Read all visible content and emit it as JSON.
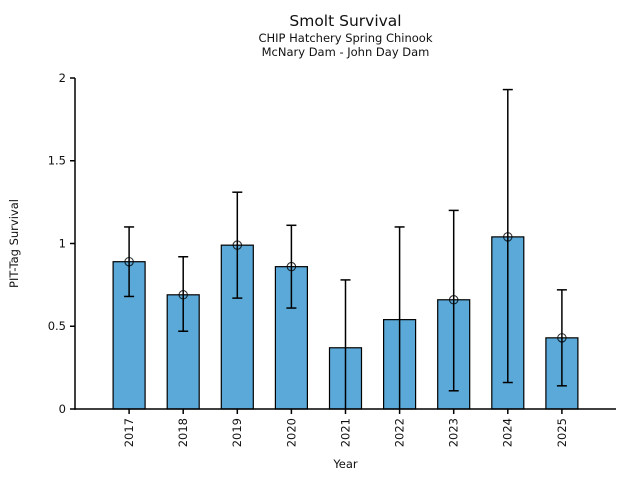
{
  "figure": {
    "title": "Smolt Survival",
    "subtitle_line1": "CHIP Hatchery Spring Chinook",
    "subtitle_line2": "McNary Dam - John Day Dam"
  },
  "chart_data": {
    "type": "bar",
    "title": "Smolt Survival",
    "subtitle": [
      "CHIP Hatchery Spring Chinook",
      "McNary Dam - John Day Dam"
    ],
    "xlabel": "Year",
    "ylabel": "PIT-Tag Survival",
    "categories": [
      "2017",
      "2018",
      "2019",
      "2020",
      "2021",
      "2022",
      "2023",
      "2024",
      "2025"
    ],
    "values": [
      0.89,
      0.69,
      0.99,
      0.86,
      0.37,
      0.54,
      0.66,
      1.04,
      0.43
    ],
    "error_low": [
      0.68,
      0.47,
      0.67,
      0.61,
      0.0,
      0.0,
      0.11,
      0.16,
      0.14
    ],
    "error_high": [
      1.1,
      0.92,
      1.31,
      1.11,
      0.78,
      1.1,
      1.2,
      1.93,
      0.72
    ],
    "point_markers": [
      true,
      true,
      true,
      true,
      false,
      false,
      true,
      true,
      true
    ],
    "ylim": [
      0,
      2
    ],
    "yticks": [
      0,
      0.5,
      1,
      1.5,
      2
    ],
    "ytick_labels": [
      "0",
      "0.5",
      "1",
      "1.5",
      "2"
    ],
    "xtick_rotation_deg": 90,
    "grid": false,
    "legend": "none",
    "bar_color": "#5BA9D8",
    "bar_edge_color": "#000000",
    "error_color": "#000000",
    "marker_edge_color": "#000000",
    "axis_color": "#000000",
    "background_color": "#FFFFFF"
  }
}
